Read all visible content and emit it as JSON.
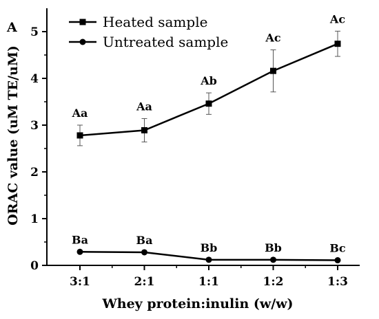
{
  "panel_label": "A",
  "chart_data": {
    "type": "line",
    "title": "",
    "xlabel": "Whey protein:inulin (w/w)",
    "ylabel": "ORAC value (uM TE/uM)",
    "categories": [
      "3:1",
      "2:1",
      "1:1",
      "1:2",
      "1:3"
    ],
    "ylim": [
      0,
      5.5
    ],
    "yticks": [
      0,
      1,
      2,
      3,
      4,
      5
    ],
    "grid": false,
    "legend_position": "top-left",
    "series": [
      {
        "name": "Heated sample",
        "marker": "square",
        "values": [
          2.78,
          2.89,
          3.46,
          4.16,
          4.74
        ],
        "errors": [
          0.22,
          0.25,
          0.23,
          0.45,
          0.27
        ],
        "labels": [
          "Aa",
          "Aa",
          "Ab",
          "Ac",
          "Ac"
        ]
      },
      {
        "name": "Untreated sample",
        "marker": "circle",
        "values": [
          0.29,
          0.28,
          0.12,
          0.12,
          0.11
        ],
        "errors": [
          0,
          0,
          0,
          0,
          0
        ],
        "labels": [
          "Ba",
          "Ba",
          "Bb",
          "Bb",
          "Bc"
        ]
      }
    ],
    "color": "#000000"
  }
}
